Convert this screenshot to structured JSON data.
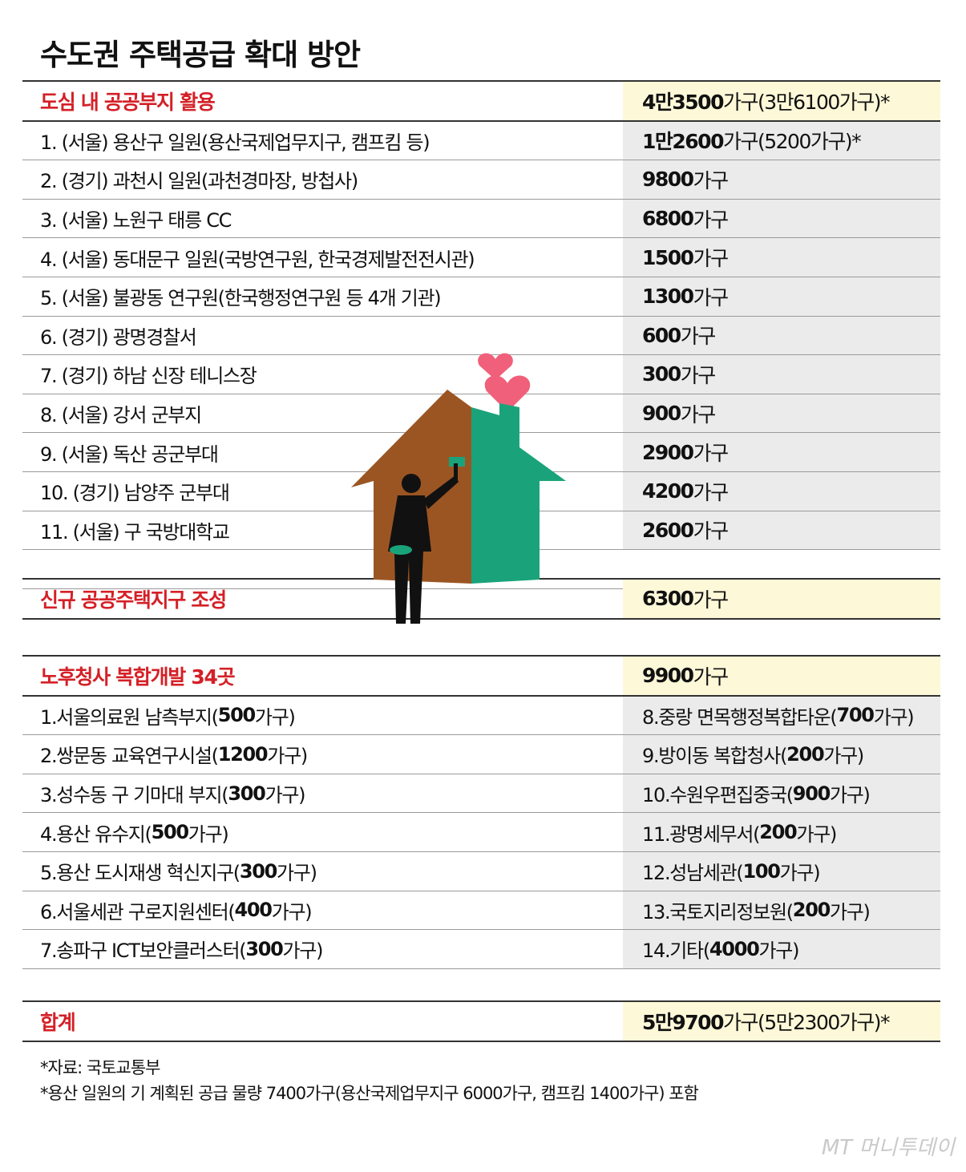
{
  "title": "수도권 주택공급 확대 방안",
  "section1": {
    "label": "도심 내 공공부지 활용",
    "value": {
      "b": "4만3500",
      "r": "가구(3만6100가구)*"
    },
    "rows": [
      {
        "label": "1. (서울) 용산구 일원(용산국제업무지구, 캠프킴 등)",
        "b": "1만2600",
        "r": "가구(5200가구)*"
      },
      {
        "label": "2. (경기) 과천시 일원(과천경마장, 방첩사)",
        "b": "9800",
        "r": "가구"
      },
      {
        "label": "3. (서울) 노원구 태릉 CC",
        "b": "6800",
        "r": "가구"
      },
      {
        "label": "4. (서울) 동대문구 일원(국방연구원, 한국경제발전전시관)",
        "b": "1500",
        "r": "가구"
      },
      {
        "label": "5. (서울) 불광동 연구원(한국행정연구원 등 4개 기관)",
        "b": "1300",
        "r": "가구"
      },
      {
        "label": "6. (경기) 광명경찰서",
        "b": "600",
        "r": "가구"
      },
      {
        "label": "7. (경기) 하남 신장 테니스장",
        "b": "300",
        "r": "가구"
      },
      {
        "label": "8. (서울) 강서 군부지",
        "b": "900",
        "r": "가구"
      },
      {
        "label": "9. (서울) 독산 공군부대",
        "b": "2900",
        "r": "가구"
      },
      {
        "label": "10. (경기) 남양주 군부대",
        "b": "4200",
        "r": "가구"
      },
      {
        "label": "11. (서울) 구 국방대학교",
        "b": "2600",
        "r": "가구"
      }
    ]
  },
  "section2": {
    "label": "신규 공공주택지구 조성",
    "value": {
      "b": "6300",
      "r": "가구"
    }
  },
  "section3": {
    "label": "노후청사 복합개발 34곳",
    "value": {
      "b": "9900",
      "r": "가구"
    },
    "rows": [
      {
        "l": {
          "a": "1.서울의료원 남측부지(",
          "b": "500",
          "c": "가구)"
        },
        "r": {
          "a": "8.중랑 면목행정복합타운(",
          "b": "700",
          "c": "가구)"
        }
      },
      {
        "l": {
          "a": "2.쌍문동 교육연구시설(",
          "b": "1200",
          "c": "가구)"
        },
        "r": {
          "a": "9.방이동 복합청사(",
          "b": "200",
          "c": "가구)"
        }
      },
      {
        "l": {
          "a": "3.성수동 구 기마대 부지(",
          "b": "300",
          "c": "가구)"
        },
        "r": {
          "a": "10.수원우편집중국(",
          "b": "900",
          "c": "가구)"
        }
      },
      {
        "l": {
          "a": "4.용산 유수지(",
          "b": "500",
          "c": "가구)"
        },
        "r": {
          "a": "11.광명세무서(",
          "b": "200",
          "c": "가구)"
        }
      },
      {
        "l": {
          "a": "5.용산 도시재생 혁신지구(",
          "b": "300",
          "c": "가구)"
        },
        "r": {
          "a": "12.성남세관(",
          "b": "100",
          "c": "가구)"
        }
      },
      {
        "l": {
          "a": "6.서울세관 구로지원센터(",
          "b": "400",
          "c": "가구)"
        },
        "r": {
          "a": "13.국토지리정보원(",
          "b": "200",
          "c": "가구)"
        }
      },
      {
        "l": {
          "a": "7.송파구 ICT보안클러스터(",
          "b": "300",
          "c": "가구)"
        },
        "r": {
          "a": "14.기타(",
          "b": "4000",
          "c": "가구)"
        }
      }
    ]
  },
  "total": {
    "label": "합계",
    "value": {
      "b": "5만9700",
      "r": "가구(5만2300가구)*"
    }
  },
  "notes": [
    "*자료: 국토교통부",
    "*용산 일원의 기 계획된 공급 물량 7400가구(용산국제업무지구 6000가구, 캠프킴 1400가구) 포함"
  ],
  "logo": "MT 머니투데이",
  "colors": {
    "accent_red": "#d42027",
    "header_bg": "#fdf8d8",
    "value_bg": "#ebebeb",
    "house_green": "#1aa37a",
    "house_wood": "#9b5523",
    "heart": "#f0607a"
  }
}
